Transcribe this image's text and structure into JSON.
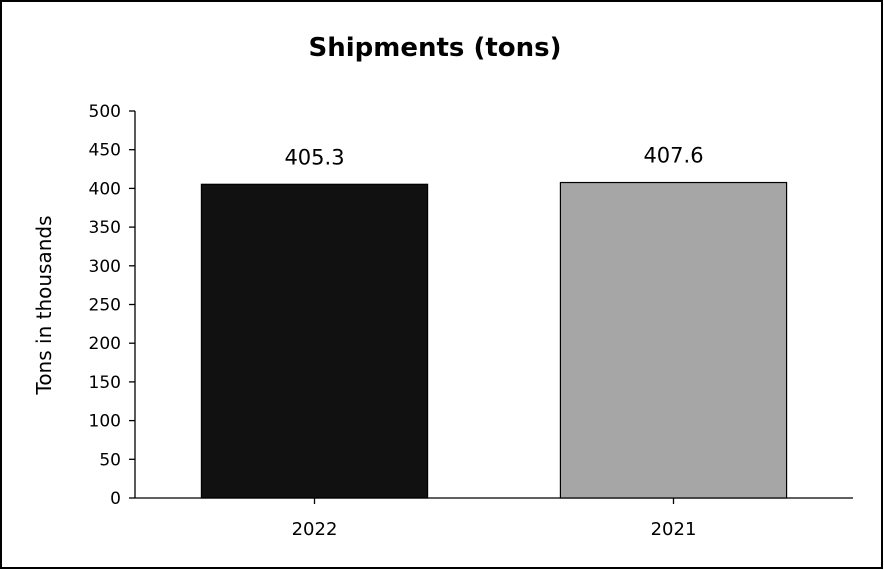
{
  "chart_data": {
    "type": "bar",
    "title": "Shipments (tons)",
    "ylabel": "Tons in thousands",
    "xlabel": "",
    "categories": [
      "2022",
      "2021"
    ],
    "values": [
      405.3,
      407.6
    ],
    "data_labels": [
      "405.3",
      "407.6"
    ],
    "bar_colors": [
      "#111111",
      "#a6a6a6"
    ],
    "ylim": [
      0,
      500
    ],
    "y_ticks": [
      0,
      50,
      100,
      150,
      200,
      250,
      300,
      350,
      400,
      450,
      500
    ],
    "grid": false,
    "legend": "none"
  }
}
